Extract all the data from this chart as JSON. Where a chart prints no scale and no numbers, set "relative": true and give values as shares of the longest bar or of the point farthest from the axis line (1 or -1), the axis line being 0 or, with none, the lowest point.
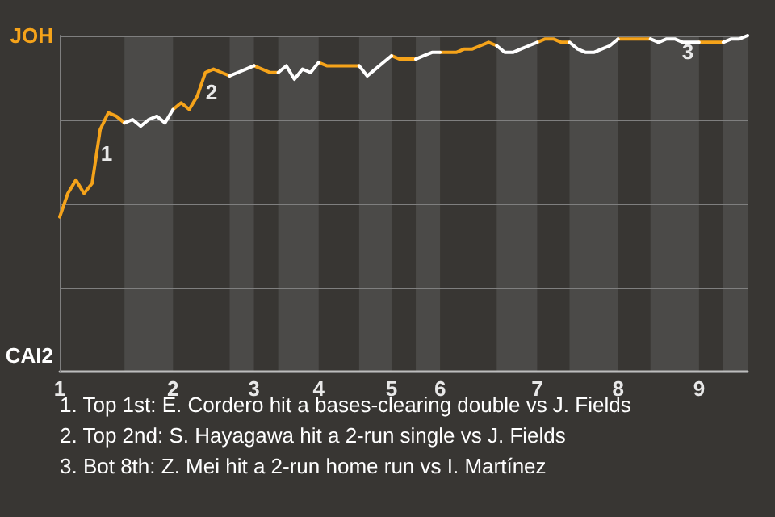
{
  "chart_data": {
    "type": "line",
    "relative": true,
    "categories": [
      "1",
      null,
      null,
      null,
      null,
      null,
      null,
      null,
      null,
      null,
      null,
      null,
      null,
      null,
      "2",
      null,
      null,
      null,
      null,
      null,
      null,
      null,
      null,
      null,
      "3",
      null,
      null,
      null,
      null,
      null,
      null,
      null,
      "4",
      null,
      null,
      null,
      null,
      null,
      null,
      null,
      null,
      "5",
      null,
      null,
      null,
      null,
      null,
      "6",
      null,
      null,
      null,
      null,
      null,
      null,
      null,
      null,
      null,
      null,
      null,
      "7",
      null,
      null,
      null,
      null,
      null,
      null,
      null,
      null,
      null,
      "8",
      null,
      null,
      null,
      null,
      null,
      null,
      null,
      null,
      null,
      "9",
      null,
      null,
      null,
      null,
      null,
      null
    ],
    "series": [
      {
        "color": "#f5a31a",
        "values": [
          0.46,
          0.53,
          0.57,
          0.53,
          0.56,
          0.72,
          0.77,
          0.76,
          0.74,
          null,
          null,
          null,
          null,
          null,
          0.78,
          0.8,
          0.78,
          0.82,
          0.89,
          0.9,
          0.89,
          0.88,
          null,
          null,
          0.91,
          0.9,
          0.89,
          0.89,
          null,
          null,
          null,
          null,
          0.92,
          0.91,
          0.91,
          0.91,
          0.91,
          0.91,
          null,
          null,
          null,
          0.94,
          0.93,
          0.93,
          0.93,
          null,
          null,
          0.95,
          0.95,
          0.95,
          0.96,
          0.96,
          0.97,
          0.98,
          0.97,
          null,
          null,
          null,
          null,
          0.98,
          0.99,
          0.99,
          0.98,
          0.98,
          null,
          null,
          null,
          null,
          null,
          0.99,
          0.99,
          0.99,
          0.99,
          0.99,
          null,
          null,
          null,
          null,
          null,
          0.98,
          0.98,
          0.98,
          0.98,
          null,
          null,
          null
        ]
      },
      {
        "color": "#ffffff",
        "values": [
          null,
          null,
          null,
          null,
          null,
          null,
          null,
          null,
          0.74,
          0.75,
          0.73,
          0.75,
          0.76,
          0.74,
          0.78,
          null,
          null,
          null,
          null,
          null,
          null,
          0.88,
          0.89,
          0.9,
          0.91,
          null,
          null,
          0.89,
          0.91,
          0.87,
          0.9,
          0.89,
          0.92,
          null,
          null,
          null,
          null,
          0.91,
          0.88,
          0.9,
          0.92,
          0.94,
          null,
          null,
          0.93,
          0.94,
          0.95,
          0.95,
          null,
          null,
          null,
          null,
          null,
          null,
          0.97,
          0.95,
          0.95,
          0.96,
          0.97,
          0.98,
          null,
          null,
          null,
          0.98,
          0.96,
          0.95,
          0.95,
          0.96,
          0.97,
          0.99,
          null,
          null,
          null,
          0.99,
          0.98,
          0.99,
          0.99,
          0.98,
          0.98,
          0.98,
          null,
          null,
          0.98,
          0.99,
          0.99,
          1
        ]
      }
    ],
    "grid": "y",
    "marker": "none",
    "line_style": "solid",
    "annotations": [
      "JOH",
      "CAI2",
      "1",
      "2",
      "3",
      "1. Top 1st: E. Cordero hit a bases-clearing double vs J. Fields",
      "2. Top 2nd: S. Hayagawa hit a 2-run single vs J. Fields",
      "3. Bot 8th: Z. Mei hit a 2-run home run vs I. Martínez"
    ]
  }
}
